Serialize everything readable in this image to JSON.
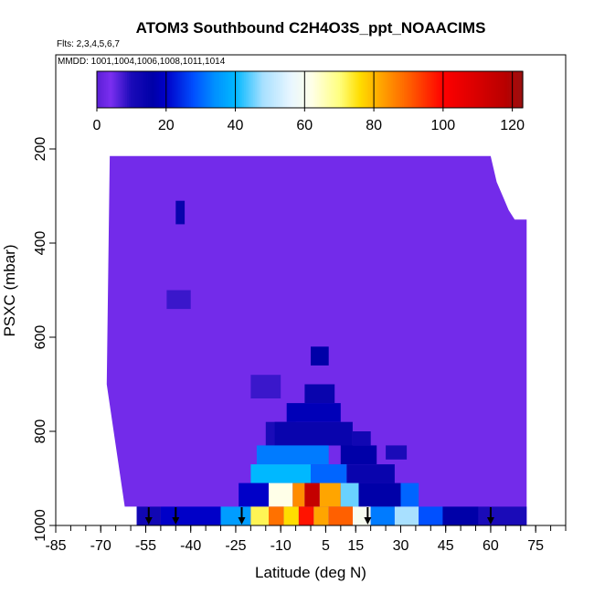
{
  "chart_data": {
    "type": "heatmap",
    "title": "ATOM3 Southbound C2H4O3S_ppt_NOAACIMS",
    "flights_note": "Flts: 2,3,4,5,6,7",
    "dates_note": "MMDD: 1001,1004,1006,1008,1011,1014",
    "xlabel": "Latitude (deg N)",
    "ylabel": "PSXC (mbar)",
    "xlim": [
      -85,
      85
    ],
    "ylim": [
      1000,
      0
    ],
    "x_ticks": [
      "-85",
      "-70",
      "-55",
      "-40",
      "-25",
      "-10",
      "5",
      "15",
      "30",
      "45",
      "60",
      "75"
    ],
    "x_tick_values": [
      -85,
      -70,
      -55,
      -40,
      -25,
      -10,
      5,
      15,
      30,
      45,
      60,
      75
    ],
    "y_ticks": [
      "200",
      "400",
      "600",
      "800",
      "1000"
    ],
    "y_tick_values": [
      200,
      400,
      600,
      800,
      1000
    ],
    "colorbar": {
      "range": [
        0,
        123
      ],
      "tick_labels": [
        "0",
        "20",
        "40",
        "60",
        "80",
        "100",
        "120"
      ],
      "tick_values": [
        0,
        20,
        40,
        60,
        80,
        100,
        120
      ]
    },
    "background_value": 3,
    "coverage": [
      {
        "lat": -67,
        "p_top": 215
      },
      {
        "lat": 60,
        "p_top": 215
      },
      {
        "lat": 62,
        "p_top": 270
      },
      {
        "lat": 64,
        "p_top": 300
      },
      {
        "lat": 66,
        "p_top": 330
      },
      {
        "lat": 68,
        "p_top": 350
      },
      {
        "lat": 72,
        "p_top": 350
      },
      {
        "lat": 72,
        "p_top": 1000
      },
      {
        "lat": -58,
        "p_top": 1000
      },
      {
        "lat": -58,
        "p_top": 960
      },
      {
        "lat": -62,
        "p_top": 960
      },
      {
        "lat": -68,
        "p_top": 700
      }
    ],
    "cells": [
      {
        "lat": [
          -45,
          -42
        ],
        "p": [
          310,
          360
        ],
        "value": 14
      },
      {
        "lat": [
          -48,
          -40
        ],
        "p": [
          500,
          540
        ],
        "value": 8
      },
      {
        "lat": [
          -20,
          -10
        ],
        "p": [
          680,
          730
        ],
        "value": 8
      },
      {
        "lat": [
          -15,
          -5
        ],
        "p": [
          780,
          830
        ],
        "value": 10
      },
      {
        "lat": [
          0,
          6
        ],
        "p": [
          620,
          660
        ],
        "value": 16
      },
      {
        "lat": [
          -2,
          8
        ],
        "p": [
          700,
          740
        ],
        "value": 14
      },
      {
        "lat": [
          -8,
          10
        ],
        "p": [
          740,
          780
        ],
        "value": 18
      },
      {
        "lat": [
          -12,
          14
        ],
        "p": [
          780,
          830
        ],
        "value": 14
      },
      {
        "lat": [
          14,
          20
        ],
        "p": [
          800,
          830
        ],
        "value": 12
      },
      {
        "lat": [
          -18,
          6
        ],
        "p": [
          830,
          870
        ],
        "value": 32
      },
      {
        "lat": [
          10,
          22
        ],
        "p": [
          830,
          870
        ],
        "value": 16
      },
      {
        "lat": [
          25,
          32
        ],
        "p": [
          830,
          860
        ],
        "value": 10
      },
      {
        "lat": [
          -20,
          0
        ],
        "p": [
          870,
          910
        ],
        "value": 40
      },
      {
        "lat": [
          0,
          12
        ],
        "p": [
          870,
          910
        ],
        "value": 30
      },
      {
        "lat": [
          12,
          28
        ],
        "p": [
          870,
          910
        ],
        "value": 14
      },
      {
        "lat": [
          -24,
          -14
        ],
        "p": [
          910,
          960
        ],
        "value": 20
      },
      {
        "lat": [
          -14,
          -6
        ],
        "p": [
          910,
          960
        ],
        "value": 62
      },
      {
        "lat": [
          -6,
          -2
        ],
        "p": [
          910,
          960
        ],
        "value": 85
      },
      {
        "lat": [
          -2,
          3
        ],
        "p": [
          910,
          960
        ],
        "value": 115
      },
      {
        "lat": [
          3,
          10
        ],
        "p": [
          910,
          960
        ],
        "value": 82
      },
      {
        "lat": [
          10,
          16
        ],
        "p": [
          910,
          960
        ],
        "value": 45
      },
      {
        "lat": [
          16,
          30
        ],
        "p": [
          910,
          960
        ],
        "value": 16
      },
      {
        "lat": [
          30,
          36
        ],
        "p": [
          910,
          960
        ],
        "value": 30
      },
      {
        "lat": [
          -58,
          -50
        ],
        "p": [
          960,
          1000
        ],
        "value": 12
      },
      {
        "lat": [
          -50,
          -30
        ],
        "p": [
          960,
          1000
        ],
        "value": 20
      },
      {
        "lat": [
          -30,
          -20
        ],
        "p": [
          960,
          1000
        ],
        "value": 36
      },
      {
        "lat": [
          -20,
          -14
        ],
        "p": [
          960,
          1000
        ],
        "value": 72
      },
      {
        "lat": [
          -14,
          -9
        ],
        "p": [
          960,
          1000
        ],
        "value": 88
      },
      {
        "lat": [
          -9,
          -4
        ],
        "p": [
          960,
          1000
        ],
        "value": 76
      },
      {
        "lat": [
          -4,
          1
        ],
        "p": [
          960,
          1000
        ],
        "value": 98
      },
      {
        "lat": [
          1,
          6
        ],
        "p": [
          960,
          1000
        ],
        "value": 82
      },
      {
        "lat": [
          6,
          14
        ],
        "p": [
          960,
          1000
        ],
        "value": 90
      },
      {
        "lat": [
          14,
          20
        ],
        "p": [
          960,
          1000
        ],
        "value": 60
      },
      {
        "lat": [
          20,
          28
        ],
        "p": [
          960,
          1000
        ],
        "value": 32
      },
      {
        "lat": [
          28,
          36
        ],
        "p": [
          960,
          1000
        ],
        "value": 48
      },
      {
        "lat": [
          36,
          44
        ],
        "p": [
          960,
          1000
        ],
        "value": 28
      },
      {
        "lat": [
          44,
          56
        ],
        "p": [
          960,
          1000
        ],
        "value": 16
      },
      {
        "lat": [
          56,
          72
        ],
        "p": [
          960,
          1000
        ],
        "value": 10
      }
    ],
    "arrows_lat": [
      -54,
      -45,
      -23,
      19,
      60
    ]
  },
  "colors": {
    "cmap": [
      [
        0,
        "#5a1fd6"
      ],
      [
        4,
        "#7b2ff0"
      ],
      [
        10,
        "#1a0bb8"
      ],
      [
        16,
        "#0000a8"
      ],
      [
        20,
        "#0000c8"
      ],
      [
        28,
        "#0050ff"
      ],
      [
        34,
        "#0090ff"
      ],
      [
        40,
        "#00b8ff"
      ],
      [
        48,
        "#a8e0ff"
      ],
      [
        56,
        "#e8f6ff"
      ],
      [
        62,
        "#ffffe8"
      ],
      [
        70,
        "#ffff80"
      ],
      [
        76,
        "#ffdd00"
      ],
      [
        82,
        "#ffa500"
      ],
      [
        90,
        "#ff6000"
      ],
      [
        100,
        "#ff0000"
      ],
      [
        110,
        "#d80000"
      ],
      [
        118,
        "#b80000"
      ],
      [
        123,
        "#9a1010"
      ]
    ]
  }
}
